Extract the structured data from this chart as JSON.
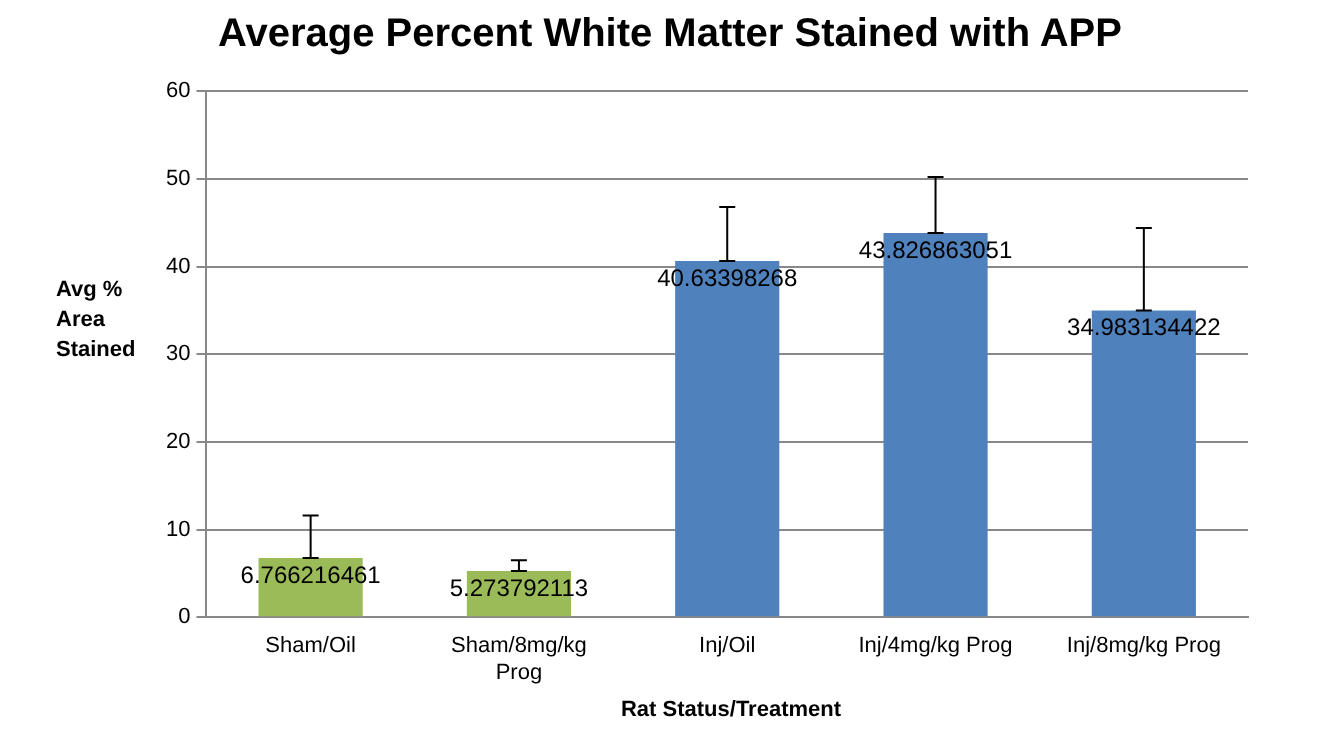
{
  "chart_data": {
    "type": "bar",
    "title": "Average Percent White Matter Stained with APP",
    "xlabel": "Rat Status/Treatment",
    "ylabel": "Avg % Area  Stained",
    "categories": [
      "Sham/Oil",
      "Sham/8mg/kg Prog",
      "Inj/Oil",
      "Inj/4mg/kg Prog",
      "Inj/8mg/kg Prog"
    ],
    "values": [
      6.766216461,
      5.273792113,
      40.63398268,
      43.826863051,
      34.983134422
    ],
    "colors": [
      "#9bbb59",
      "#9bbb59",
      "#4f81bd",
      "#4f81bd",
      "#4f81bd"
    ],
    "errors": [
      [
        6.766216461,
        11.6
      ],
      [
        5.273792113,
        6.5
      ],
      [
        40.63398268,
        46.8
      ],
      [
        43.826863051,
        50.2
      ],
      [
        34.983134422,
        44.4
      ]
    ],
    "data_labels": true,
    "ylim": [
      0,
      60
    ],
    "yticks": [
      0,
      10,
      20,
      30,
      40,
      50,
      60
    ],
    "grid": "y",
    "legend": false
  }
}
